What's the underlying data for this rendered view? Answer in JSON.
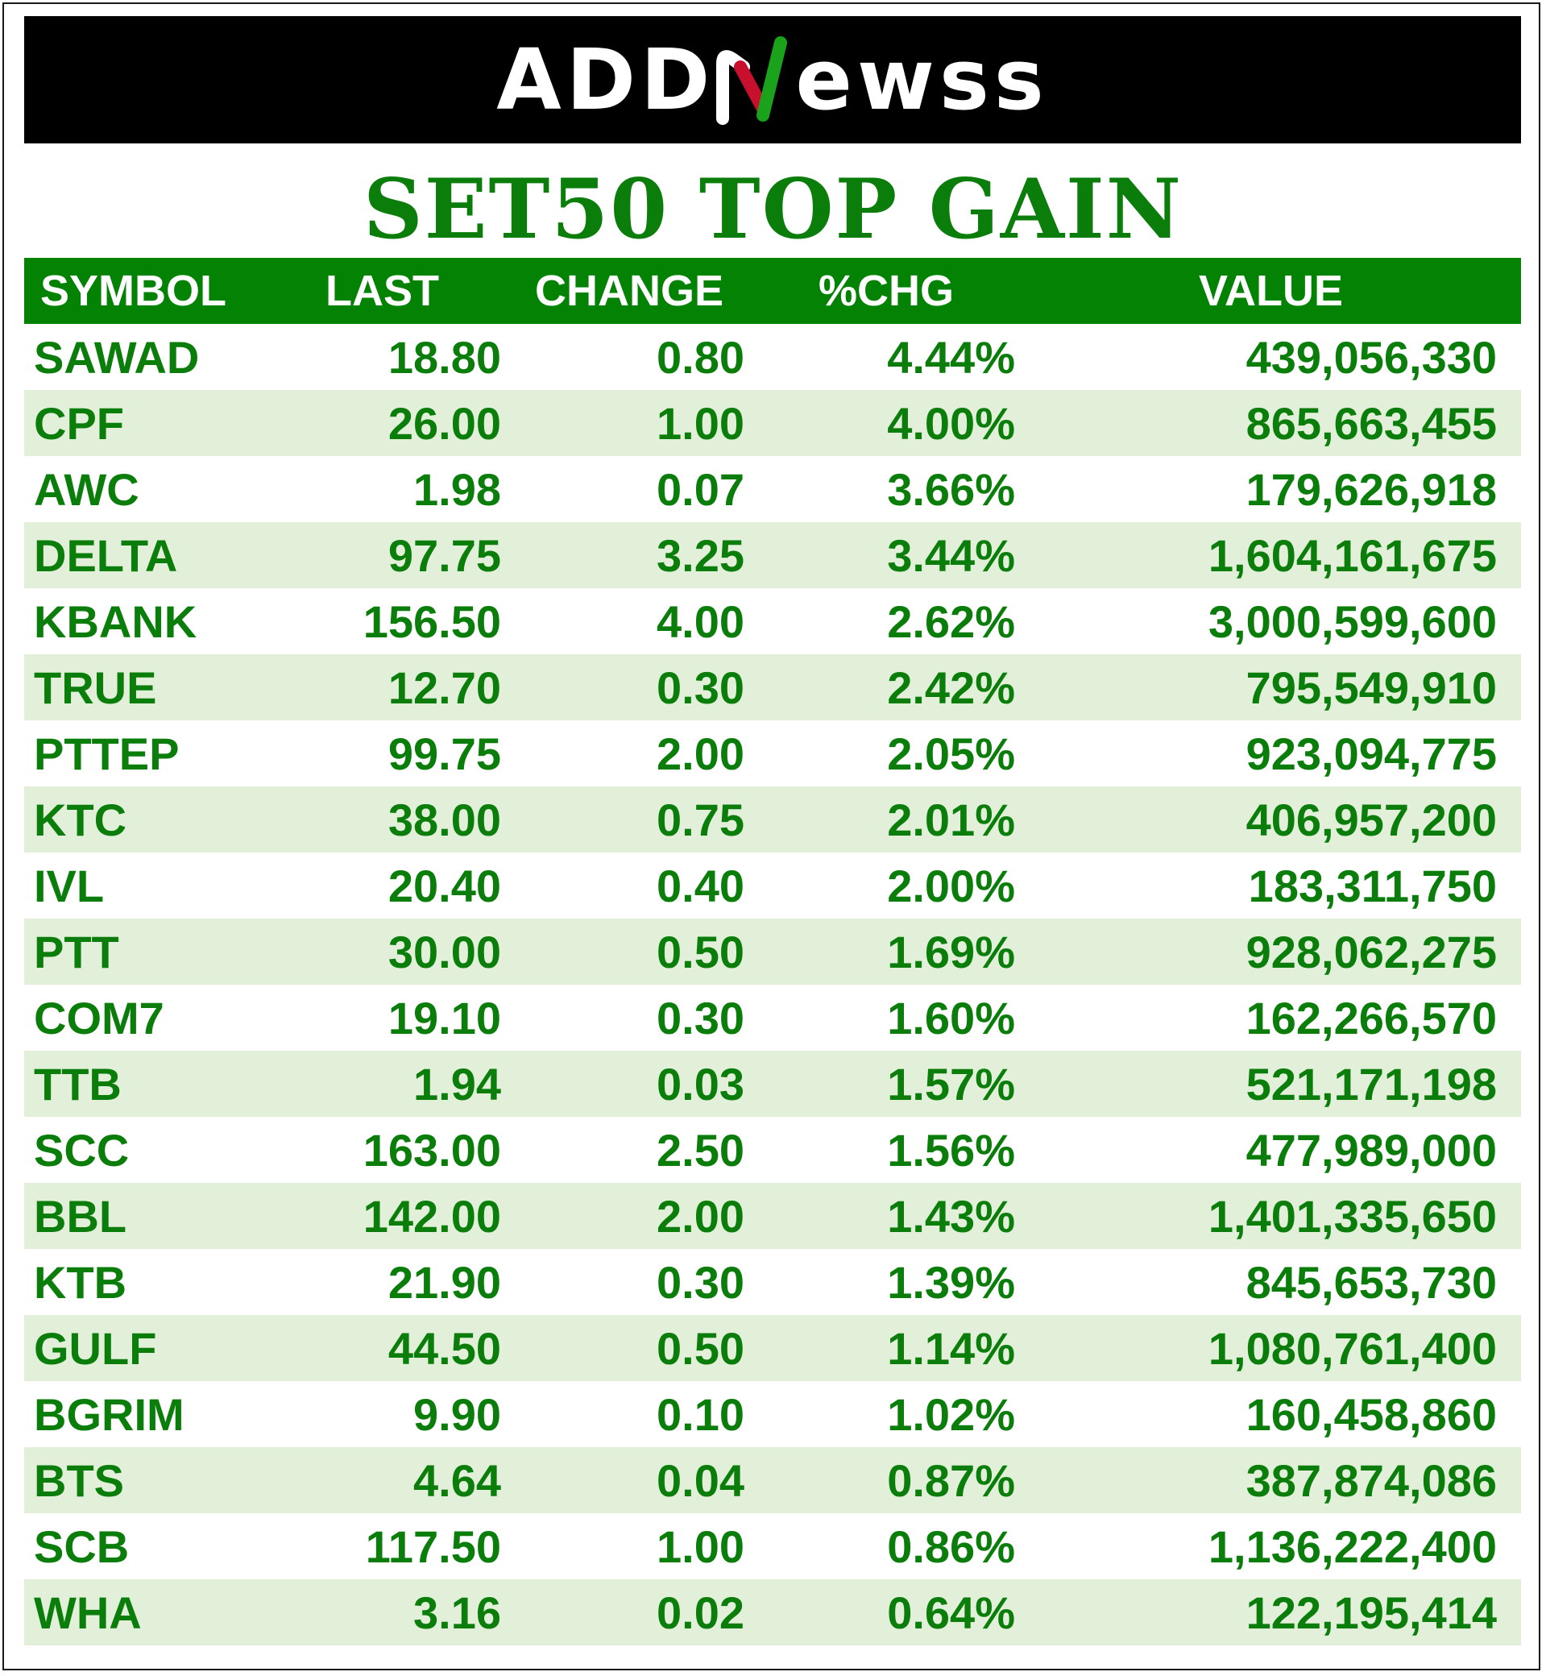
{
  "brand": {
    "logo_left": "ADD",
    "logo_right": "ewss",
    "accent_green": "#1aa31a",
    "accent_red": "#c8102e"
  },
  "title": "SET50 TOP GAIN",
  "columns": {
    "symbol": "SYMBOL",
    "last": "LAST",
    "change": "CHANGE",
    "pct": "%CHG",
    "value": "VALUE"
  },
  "rows": [
    {
      "symbol": "SAWAD",
      "last": "18.80",
      "change": "0.80",
      "pct": "4.44%",
      "value": "439,056,330"
    },
    {
      "symbol": "CPF",
      "last": "26.00",
      "change": "1.00",
      "pct": "4.00%",
      "value": "865,663,455"
    },
    {
      "symbol": "AWC",
      "last": "1.98",
      "change": "0.07",
      "pct": "3.66%",
      "value": "179,626,918"
    },
    {
      "symbol": "DELTA",
      "last": "97.75",
      "change": "3.25",
      "pct": "3.44%",
      "value": "1,604,161,675"
    },
    {
      "symbol": "KBANK",
      "last": "156.50",
      "change": "4.00",
      "pct": "2.62%",
      "value": "3,000,599,600"
    },
    {
      "symbol": "TRUE",
      "last": "12.70",
      "change": "0.30",
      "pct": "2.42%",
      "value": "795,549,910"
    },
    {
      "symbol": "PTTEP",
      "last": "99.75",
      "change": "2.00",
      "pct": "2.05%",
      "value": "923,094,775"
    },
    {
      "symbol": "KTC",
      "last": "38.00",
      "change": "0.75",
      "pct": "2.01%",
      "value": "406,957,200"
    },
    {
      "symbol": "IVL",
      "last": "20.40",
      "change": "0.40",
      "pct": "2.00%",
      "value": "183,311,750"
    },
    {
      "symbol": "PTT",
      "last": "30.00",
      "change": "0.50",
      "pct": "1.69%",
      "value": "928,062,275"
    },
    {
      "symbol": "COM7",
      "last": "19.10",
      "change": "0.30",
      "pct": "1.60%",
      "value": "162,266,570"
    },
    {
      "symbol": "TTB",
      "last": "1.94",
      "change": "0.03",
      "pct": "1.57%",
      "value": "521,171,198"
    },
    {
      "symbol": "SCC",
      "last": "163.00",
      "change": "2.50",
      "pct": "1.56%",
      "value": "477,989,000"
    },
    {
      "symbol": "BBL",
      "last": "142.00",
      "change": "2.00",
      "pct": "1.43%",
      "value": "1,401,335,650"
    },
    {
      "symbol": "KTB",
      "last": "21.90",
      "change": "0.30",
      "pct": "1.39%",
      "value": "845,653,730"
    },
    {
      "symbol": "GULF",
      "last": "44.50",
      "change": "0.50",
      "pct": "1.14%",
      "value": "1,080,761,400"
    },
    {
      "symbol": "BGRIM",
      "last": "9.90",
      "change": "0.10",
      "pct": "1.02%",
      "value": "160,458,860"
    },
    {
      "symbol": "BTS",
      "last": "4.64",
      "change": "0.04",
      "pct": "0.87%",
      "value": "387,874,086"
    },
    {
      "symbol": "SCB",
      "last": "117.50",
      "change": "1.00",
      "pct": "0.86%",
      "value": "1,136,222,400"
    },
    {
      "symbol": "WHA",
      "last": "3.16",
      "change": "0.02",
      "pct": "0.64%",
      "value": "122,195,414"
    }
  ]
}
